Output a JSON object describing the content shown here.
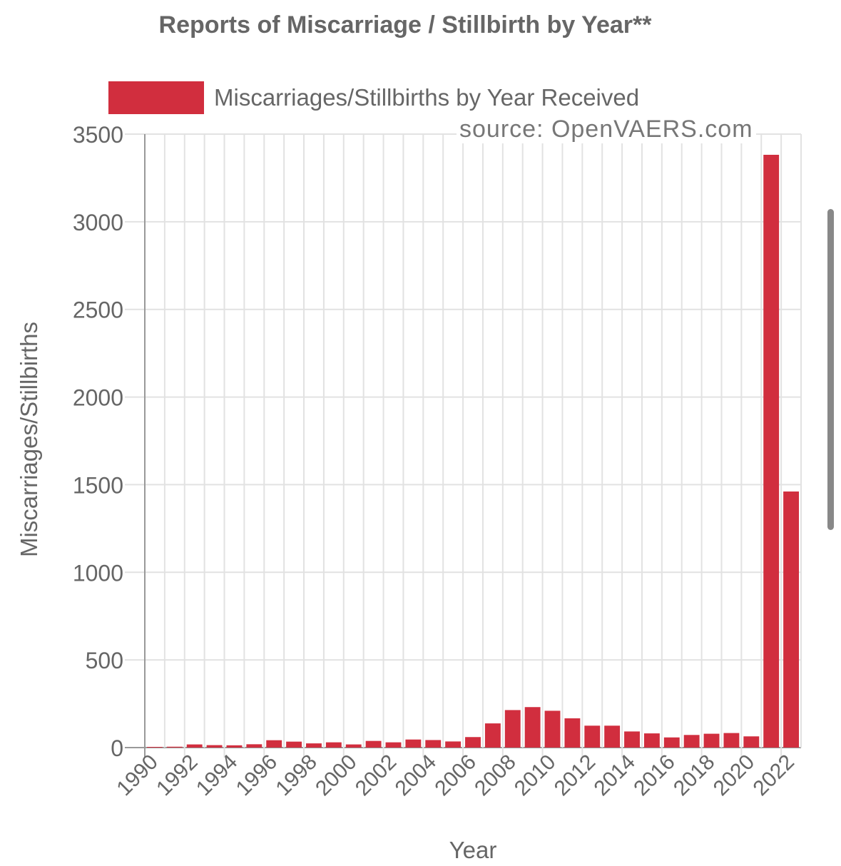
{
  "chart_data": {
    "type": "bar",
    "title": "Reports of Miscarriage / Stillbirth by Year**",
    "legend": "Miscarriages/Stillbirths by Year Received",
    "annotation": "source: OpenVAERS.com",
    "xlabel": "Year",
    "ylabel": "Miscarriages/Stillbirths",
    "ylim": [
      0,
      3500
    ],
    "yticks": [
      0,
      500,
      1000,
      1500,
      2000,
      2500,
      3000,
      3500
    ],
    "color": "#d12e3e",
    "categories": [
      "1990",
      "1991",
      "1992",
      "1993",
      "1994",
      "1995",
      "1996",
      "1997",
      "1998",
      "1999",
      "2000",
      "2001",
      "2002",
      "2003",
      "2004",
      "2005",
      "2006",
      "2007",
      "2008",
      "2009",
      "2010",
      "2011",
      "2012",
      "2013",
      "2014",
      "2015",
      "2016",
      "2017",
      "2018",
      "2019",
      "2020",
      "2021",
      "2022"
    ],
    "values": [
      4,
      5,
      18,
      14,
      13,
      19,
      42,
      34,
      24,
      30,
      18,
      38,
      30,
      46,
      43,
      35,
      60,
      138,
      214,
      231,
      210,
      167,
      125,
      125,
      92,
      81,
      58,
      72,
      79,
      83,
      64,
      3382,
      1461
    ],
    "grid": true,
    "legend_position": "top"
  }
}
